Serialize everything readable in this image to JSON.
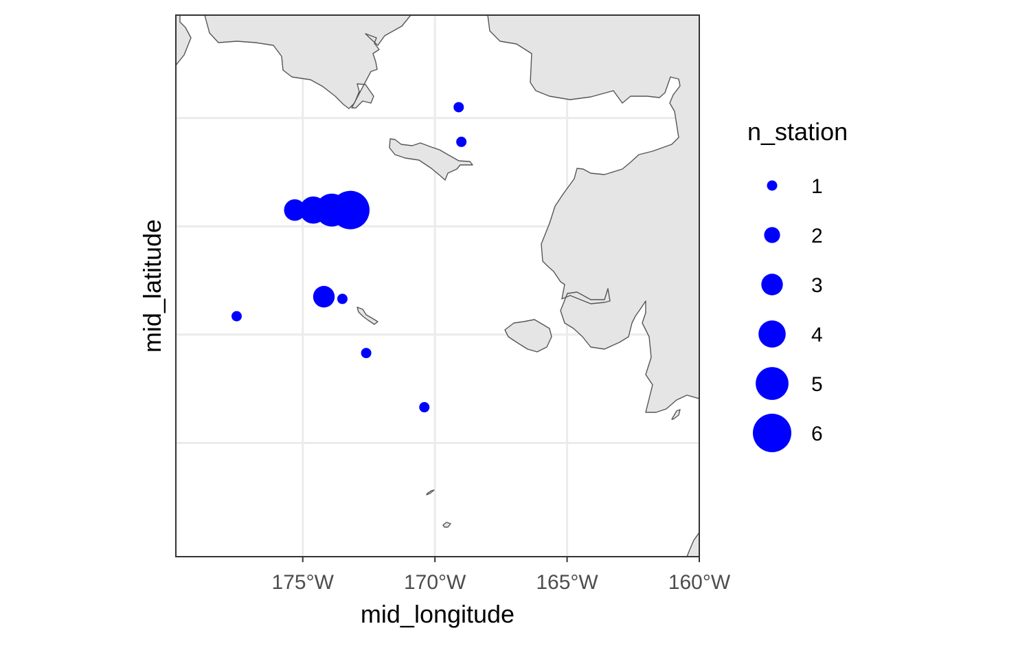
{
  "chart_data": {
    "type": "scatter",
    "subtype": "bubble map",
    "xlabel": "mid_longitude",
    "ylabel": "mid_latitude",
    "x_ticks": [
      {
        "value": -175,
        "label": "175°W"
      },
      {
        "value": -170,
        "label": "170°W"
      },
      {
        "value": -165,
        "label": "165°W"
      },
      {
        "value": -160,
        "label": "160°W"
      }
    ],
    "y_gridlines": [
      65,
      64,
      63,
      62
    ],
    "xlim": [
      -179.8,
      -160
    ],
    "ylim": [
      60.95,
      65.95
    ],
    "grid": true,
    "size_legend": {
      "title": "n_station",
      "placement": "right",
      "entries": [
        {
          "value": 1,
          "label": "1"
        },
        {
          "value": 2,
          "label": "2"
        },
        {
          "value": 3,
          "label": "3"
        },
        {
          "value": 4,
          "label": "4"
        },
        {
          "value": 5,
          "label": "5"
        },
        {
          "value": 6,
          "label": "6"
        }
      ]
    },
    "point_color": "#0000ff",
    "land_color": "#e5e5e5",
    "coast_color": "#555555",
    "points": [
      {
        "x": -169.1,
        "y": 65.1,
        "n_station": 1
      },
      {
        "x": -169.0,
        "y": 64.78,
        "n_station": 1
      },
      {
        "x": -175.3,
        "y": 64.15,
        "n_station": 3
      },
      {
        "x": -174.6,
        "y": 64.15,
        "n_station": 4
      },
      {
        "x": -173.9,
        "y": 64.15,
        "n_station": 5
      },
      {
        "x": -173.2,
        "y": 64.15,
        "n_station": 6
      },
      {
        "x": -174.2,
        "y": 63.35,
        "n_station": 3
      },
      {
        "x": -173.5,
        "y": 63.33,
        "n_station": 1
      },
      {
        "x": -177.5,
        "y": 63.17,
        "n_station": 1
      },
      {
        "x": -172.6,
        "y": 62.83,
        "n_station": 1
      },
      {
        "x": -170.4,
        "y": 62.33,
        "n_station": 1
      }
    ]
  }
}
